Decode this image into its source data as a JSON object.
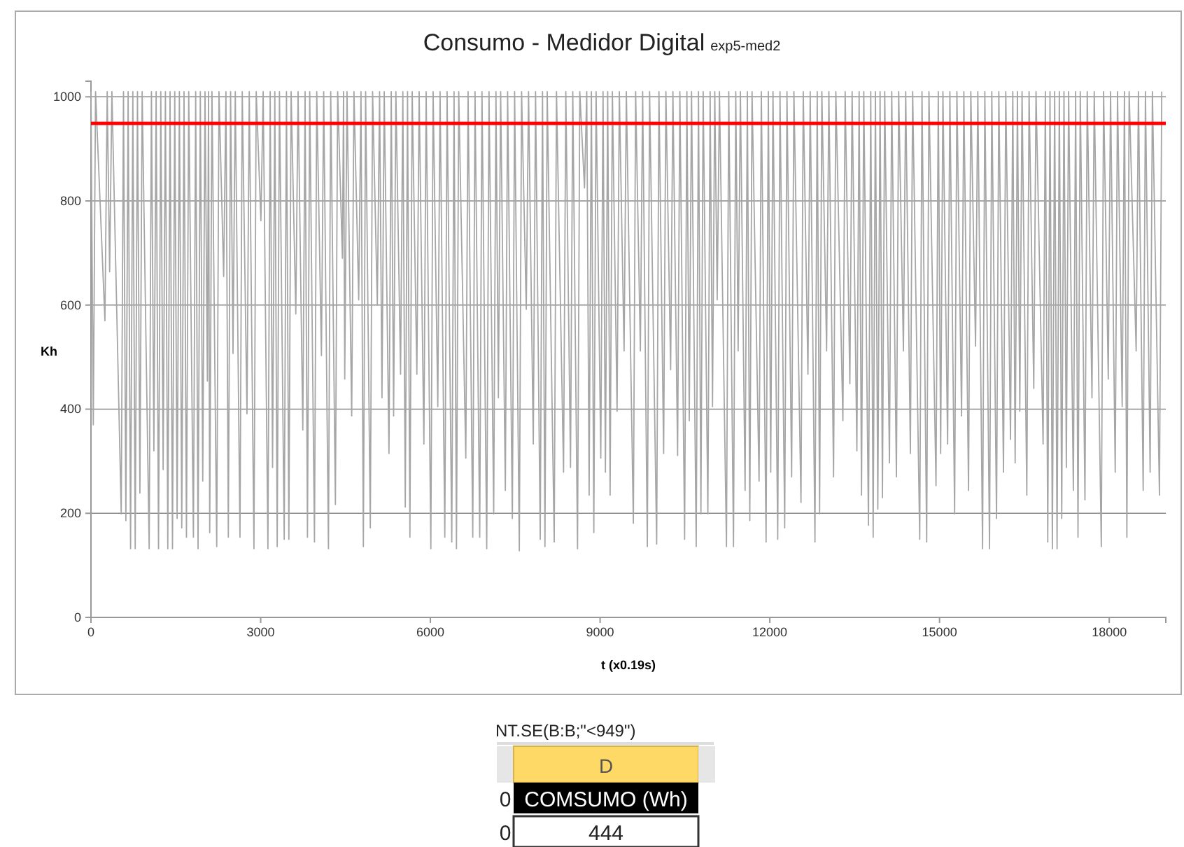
{
  "chart_data": {
    "type": "line",
    "title": "Consumo - Medidor Digital",
    "subtitle": "exp5-med2",
    "xlabel": "t (x0.19s)",
    "ylabel": "Kh",
    "xlim": [
      0,
      19000
    ],
    "xticks": [
      0,
      3000,
      6000,
      9000,
      12000,
      15000,
      18000
    ],
    "ylim": [
      0,
      1030
    ],
    "yticks": [
      0,
      200,
      400,
      600,
      800,
      1000
    ],
    "grid": "y",
    "ref_lines": [
      {
        "axis": "y",
        "value": 949,
        "color": "#ff0000"
      }
    ],
    "annotations": [
      "NT.SE(B:B;\"<949\")",
      "D",
      "COMSUMO (Wh)",
      "444",
      "0",
      "0"
    ],
    "series": [
      {
        "color": "#a6a6a6",
        "x": [
          0,
          41,
          81,
          247,
          287,
          330,
          370,
          535,
          575,
          617,
          657,
          700,
          740,
          782,
          822,
          865,
          905,
          1029,
          1069,
          1112,
          1152,
          1194,
          1234,
          1276,
          1316,
          1358,
          1398,
          1441,
          1481,
          1523,
          1563,
          1605,
          1645,
          1688,
          1728,
          1811,
          1851,
          1893,
          1933,
          1976,
          2016,
          2058,
          2078,
          2099,
          2139,
          2223,
          2263,
          2346,
          2386,
          2428,
          2468,
          2511,
          2551,
          2634,
          2674,
          2758,
          2798,
          2881,
          2921,
          3004,
          3044,
          3128,
          3168,
          3210,
          3250,
          3292,
          3332,
          3416,
          3456,
          3498,
          3538,
          3621,
          3661,
          3745,
          3785,
          3827,
          3867,
          3951,
          3991,
          4074,
          4114,
          4198,
          4238,
          4321,
          4361,
          4445,
          4465,
          4486,
          4526,
          4609,
          4649,
          4733,
          4773,
          4815,
          4855,
          4938,
          4978,
          5062,
          5102,
          5144,
          5184,
          5268,
          5308,
          5350,
          5390,
          5473,
          5513,
          5556,
          5596,
          5638,
          5678,
          5761,
          5801,
          5885,
          5925,
          6008,
          6048,
          6131,
          6171,
          6255,
          6295,
          6378,
          6418,
          6461,
          6501,
          6626,
          6666,
          6749,
          6789,
          6872,
          6912,
          6996,
          7036,
          7119,
          7159,
          7202,
          7242,
          7325,
          7365,
          7449,
          7489,
          7572,
          7612,
          7695,
          7735,
          7819,
          7859,
          7942,
          7982,
          8025,
          8065,
          8189,
          8229,
          8354,
          8394,
          8477,
          8517,
          8601,
          8641,
          8724,
          8764,
          8806,
          8846,
          8889,
          8929,
          9012,
          9052,
          9094,
          9134,
          9177,
          9217,
          9300,
          9340,
          9424,
          9464,
          9588,
          9628,
          9712,
          9752,
          9835,
          9875,
          10000,
          10040,
          10123,
          10163,
          10247,
          10287,
          10370,
          10410,
          10494,
          10534,
          10576,
          10616,
          10699,
          10739,
          10782,
          10822,
          10905,
          10945,
          10987,
          11027,
          11070,
          11110,
          11234,
          11274,
          11358,
          11398,
          11440,
          11480,
          11563,
          11603,
          11646,
          11686,
          11810,
          11850,
          11934,
          11974,
          12016,
          12056,
          12140,
          12180,
          12263,
          12303,
          12386,
          12426,
          12551,
          12591,
          12674,
          12714,
          12798,
          12838,
          12880,
          12920,
          13004,
          13044,
          13127,
          13167,
          13292,
          13332,
          13415,
          13455,
          13539,
          13579,
          13621,
          13661,
          13744,
          13784,
          13827,
          13867,
          13909,
          13949,
          13991,
          14031,
          14115,
          14155,
          14238,
          14278,
          14362,
          14402,
          14485,
          14525,
          14650,
          14690,
          14773,
          14813,
          14938,
          14978,
          15020,
          15060,
          15143,
          15183,
          15267,
          15307,
          15390,
          15430,
          15513,
          15553,
          15637,
          15677,
          15761,
          15801,
          15884,
          15924,
          16008,
          16048,
          16131,
          16171,
          16255,
          16295,
          16337,
          16377,
          16419,
          16459,
          16543,
          16583,
          16666,
          16706,
          16831,
          16871,
          16913,
          16953,
          16995,
          17035,
          17078,
          17118,
          17160,
          17200,
          17242,
          17282,
          17366,
          17406,
          17448,
          17488,
          17571,
          17611,
          17695,
          17735,
          17860,
          17900,
          17983,
          18023,
          18106,
          18146,
          18229,
          18269,
          18312,
          18352,
          18476,
          18516,
          18600,
          18640,
          18723,
          18763,
          18888,
          18928
        ],
        "values": [
          1010,
          370,
          1010,
          570,
          1010,
          664,
          1010,
          199,
          1010,
          186,
          1010,
          132,
          1010,
          132,
          1010,
          239,
          1010,
          132,
          1010,
          320,
          1010,
          132,
          1010,
          284,
          1010,
          132,
          1010,
          132,
          1010,
          190,
          1010,
          172,
          1010,
          154,
          1010,
          154,
          1010,
          132,
          1010,
          262,
          1010,
          454,
          1010,
          163,
          1010,
          136,
          1010,
          655,
          1010,
          154,
          1010,
          507,
          1010,
          154,
          1010,
          391,
          1010,
          132,
          1010,
          762,
          1010,
          132,
          1010,
          288,
          1010,
          136,
          1010,
          150,
          1010,
          150,
          1010,
          583,
          1010,
          360,
          1010,
          154,
          1010,
          145,
          1010,
          503,
          1010,
          132,
          1010,
          217,
          1010,
          690,
          1010,
          458,
          1010,
          387,
          1010,
          610,
          1010,
          136,
          1010,
          172,
          1010,
          601,
          1010,
          422,
          1010,
          315,
          1010,
          387,
          1010,
          467,
          1010,
          212,
          1010,
          154,
          1010,
          467,
          1010,
          333,
          1010,
          132,
          1010,
          405,
          1010,
          154,
          1010,
          145,
          1010,
          132,
          1010,
          306,
          1010,
          154,
          1010,
          154,
          1010,
          132,
          1010,
          199,
          1010,
          422,
          1010,
          244,
          1010,
          190,
          1010,
          128,
          1010,
          592,
          1010,
          333,
          1010,
          150,
          1010,
          136,
          1010,
          145,
          1010,
          279,
          1010,
          288,
          1010,
          132,
          1010,
          825,
          1010,
          235,
          1010,
          163,
          1010,
          306,
          1010,
          279,
          1010,
          235,
          1010,
          396,
          1010,
          512,
          1010,
          181,
          1010,
          512,
          1010,
          136,
          1010,
          141,
          1010,
          315,
          1010,
          476,
          1010,
          311,
          1010,
          150,
          1010,
          378,
          1010,
          136,
          1010,
          199,
          1010,
          199,
          1010,
          405,
          1010,
          610,
          1010,
          136,
          1010,
          136,
          1010,
          512,
          1010,
          244,
          1010,
          186,
          1010,
          262,
          1010,
          145,
          1010,
          279,
          1010,
          150,
          1010,
          172,
          1010,
          270,
          1010,
          221,
          1010,
          467,
          1010,
          145,
          1010,
          199,
          1010,
          512,
          1010,
          270,
          1010,
          378,
          1010,
          449,
          1010,
          320,
          1010,
          235,
          1010,
          177,
          1010,
          154,
          1010,
          208,
          1010,
          230,
          1010,
          297,
          1010,
          270,
          1010,
          512,
          1010,
          315,
          1010,
          150,
          1010,
          145,
          1010,
          253,
          1010,
          315,
          1010,
          333,
          1010,
          199,
          1010,
          387,
          1010,
          244,
          1010,
          521,
          1010,
          132,
          1010,
          132,
          1010,
          190,
          1010,
          279,
          1010,
          342,
          1010,
          297,
          1010,
          396,
          1010,
          235,
          1010,
          440,
          1010,
          333,
          1010,
          145,
          1010,
          132,
          1010,
          132,
          1010,
          190,
          1010,
          288,
          1010,
          244,
          1010,
          154,
          1010,
          226,
          1010,
          422,
          1010,
          136,
          1010,
          458,
          1010,
          279,
          1010,
          405,
          1010,
          154,
          1010,
          512,
          1010,
          244,
          1010,
          279,
          1010,
          235,
          1010
        ]
      }
    ]
  }
}
